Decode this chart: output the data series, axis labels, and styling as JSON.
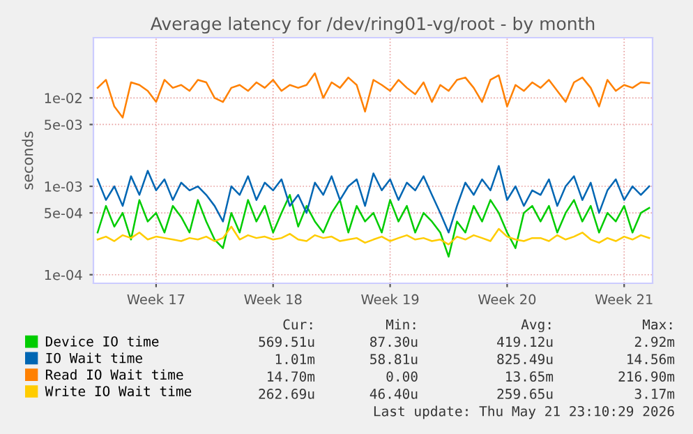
{
  "chart_data": {
    "type": "line",
    "title": "Average latency for /dev/ring01-vg/root - by month",
    "ylabel": "seconds",
    "log": "y",
    "ylim": [
      8e-05,
      0.048
    ],
    "yticks": [
      {
        "value": 0.0001,
        "label": "1e-04"
      },
      {
        "value": 0.0005,
        "label": "5e-04"
      },
      {
        "value": 0.001,
        "label": "1e-03"
      },
      {
        "value": 0.005,
        "label": "5e-03"
      },
      {
        "value": 0.01,
        "label": "1e-02"
      }
    ],
    "categories": [
      null,
      null,
      null,
      null,
      null,
      null,
      null,
      "Week 17",
      null,
      null,
      null,
      null,
      null,
      null,
      null,
      null,
      null,
      null,
      null,
      null,
      null,
      "Week 18",
      null,
      null,
      null,
      null,
      null,
      null,
      null,
      null,
      null,
      null,
      null,
      null,
      null,
      "Week 19",
      null,
      null,
      null,
      null,
      null,
      null,
      null,
      null,
      null,
      null,
      null,
      null,
      null,
      "Week 20",
      null,
      null,
      null,
      null,
      null,
      null,
      null,
      null,
      null,
      null,
      null,
      null,
      null,
      "Week 21",
      null,
      null,
      null
    ],
    "grid": true,
    "legend": "bottom",
    "marker": "none",
    "line_style": "solid",
    "series": [
      {
        "name": "Device IO time",
        "color": "#00cc00",
        "values": [
          0.0003,
          0.0006,
          0.00035,
          0.0005,
          0.00025,
          0.0007,
          0.0004,
          0.0005,
          0.0003,
          0.0006,
          0.00045,
          0.0003,
          0.0007,
          0.0004,
          0.00025,
          0.0002,
          0.0005,
          0.0003,
          0.0007,
          0.0004,
          0.0006,
          0.0003,
          0.0005,
          0.0008,
          0.00035,
          0.0006,
          0.0004,
          0.0003,
          0.0005,
          0.0007,
          0.0003,
          0.0006,
          0.0004,
          0.0005,
          0.0003,
          0.0007,
          0.0004,
          0.0006,
          0.0003,
          0.0005,
          0.0004,
          0.0003,
          0.00016,
          0.0004,
          0.0003,
          0.0006,
          0.0004,
          0.0007,
          0.0005,
          0.0003,
          0.0002,
          0.0005,
          0.0006,
          0.0004,
          0.0006,
          0.0003,
          0.0005,
          0.0007,
          0.0004,
          0.0006,
          0.0003,
          0.0005,
          0.0004,
          0.0006,
          0.0003,
          0.0005,
          0.00057
        ]
      },
      {
        "name": "IO Wait time",
        "color": "#0066b3",
        "values": [
          0.0012,
          0.0007,
          0.001,
          0.0006,
          0.0013,
          0.0008,
          0.0015,
          0.0009,
          0.0012,
          0.0007,
          0.0011,
          0.0009,
          0.001,
          0.0008,
          0.0006,
          0.0004,
          0.001,
          0.0008,
          0.0013,
          0.0007,
          0.0011,
          0.0009,
          0.0012,
          0.0006,
          0.0008,
          0.0005,
          0.0011,
          0.0008,
          0.0013,
          0.0007,
          0.001,
          0.0012,
          0.0006,
          0.0014,
          0.0009,
          0.0012,
          0.0007,
          0.0011,
          0.0009,
          0.0013,
          0.0008,
          0.0005,
          0.0003,
          0.0006,
          0.0011,
          0.0008,
          0.0012,
          0.0009,
          0.0017,
          0.0007,
          0.001,
          0.0006,
          0.0009,
          0.0008,
          0.0012,
          0.0006,
          0.001,
          0.0013,
          0.0007,
          0.0011,
          0.0005,
          0.0009,
          0.0012,
          0.0007,
          0.001,
          0.0008,
          0.001
        ]
      },
      {
        "name": "Read IO Wait time",
        "color": "#ff8000",
        "values": [
          0.013,
          0.016,
          0.008,
          0.006,
          0.015,
          0.014,
          0.012,
          0.009,
          0.016,
          0.013,
          0.014,
          0.012,
          0.016,
          0.015,
          0.01,
          0.009,
          0.013,
          0.014,
          0.012,
          0.015,
          0.013,
          0.016,
          0.012,
          0.014,
          0.013,
          0.014,
          0.019,
          0.01,
          0.015,
          0.013,
          0.017,
          0.014,
          0.007,
          0.016,
          0.014,
          0.012,
          0.016,
          0.013,
          0.011,
          0.015,
          0.009,
          0.014,
          0.012,
          0.016,
          0.017,
          0.013,
          0.009,
          0.016,
          0.018,
          0.008,
          0.014,
          0.012,
          0.015,
          0.013,
          0.016,
          0.012,
          0.009,
          0.015,
          0.017,
          0.013,
          0.008,
          0.016,
          0.012,
          0.014,
          0.013,
          0.015,
          0.0147
        ]
      },
      {
        "name": "Write IO Wait time",
        "color": "#ffcc00",
        "values": [
          0.00025,
          0.00027,
          0.00024,
          0.00028,
          0.00026,
          0.0003,
          0.00025,
          0.00027,
          0.00026,
          0.00025,
          0.00024,
          0.00026,
          0.00025,
          0.00027,
          0.00024,
          0.00026,
          0.00035,
          0.00025,
          0.00028,
          0.00026,
          0.00027,
          0.00025,
          0.00026,
          0.00029,
          0.00025,
          0.00024,
          0.00028,
          0.00026,
          0.00027,
          0.00024,
          0.00025,
          0.00026,
          0.00023,
          0.00025,
          0.00027,
          0.00024,
          0.00026,
          0.00028,
          0.00025,
          0.00026,
          0.00024,
          0.00025,
          0.00022,
          0.00027,
          0.00025,
          0.00028,
          0.00026,
          0.00024,
          0.00033,
          0.00027,
          0.00025,
          0.00024,
          0.00026,
          0.00026,
          0.00024,
          0.00028,
          0.00025,
          0.00027,
          0.0003,
          0.00025,
          0.00023,
          0.00026,
          0.00024,
          0.00027,
          0.00025,
          0.00028,
          0.00026
        ]
      }
    ],
    "annotations": [
      "Cur:",
      "Min:",
      "Avg:",
      "Max:",
      "569.51u",
      "87.30u",
      "419.12u",
      "2.92m",
      "1.01m",
      "58.81u",
      "825.49u",
      "14.56m",
      "14.70m",
      "0.00",
      "13.65m",
      "216.90m",
      "262.69u",
      "46.40u",
      "259.65u",
      "3.17m",
      "Last update: Thu May 21 23:10:29 2026"
    ]
  }
}
